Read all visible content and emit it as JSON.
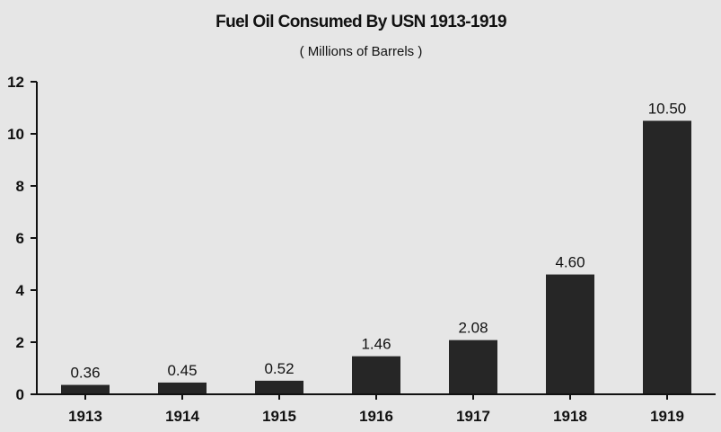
{
  "chart_data": {
    "type": "bar",
    "title": "Fuel Oil Consumed By USN 1913-1919",
    "subtitle": "( Millions of Barrels )",
    "xlabel": "",
    "ylabel": "",
    "categories": [
      "1913",
      "1914",
      "1915",
      "1916",
      "1917",
      "1918",
      "1919"
    ],
    "values": [
      0.36,
      0.45,
      0.52,
      1.46,
      2.08,
      4.6,
      10.5
    ],
    "data_labels": [
      "0.36",
      "0.45",
      "0.52",
      "1.46",
      "2.08",
      "4.60",
      "10.50"
    ],
    "ylim": [
      0,
      12
    ],
    "yticks": [
      0,
      2,
      4,
      6,
      8,
      10,
      12
    ],
    "grid": false,
    "legend": "none",
    "bar_color": "#262626",
    "background_color": "#e6e6e6",
    "axis_color": "#111111"
  }
}
